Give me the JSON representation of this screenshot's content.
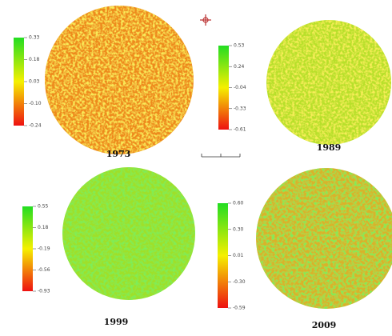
{
  "panels": [
    {
      "year": "1973",
      "legend": [
        "0.33",
        "0.18",
        "0.03",
        "-0.10",
        "-0.24"
      ]
    },
    {
      "year": "1989",
      "legend": [
        "0.53",
        "0.24",
        "-0.04",
        "-0.33",
        "-0.61"
      ]
    },
    {
      "year": "1999",
      "legend": [
        "0.55",
        "0.18",
        "-0.19",
        "-0.56",
        "-0.93"
      ]
    },
    {
      "year": "2009",
      "legend": [
        "0.60",
        "0.30",
        "0.01",
        "-0.30",
        "-0.59"
      ]
    }
  ]
}
